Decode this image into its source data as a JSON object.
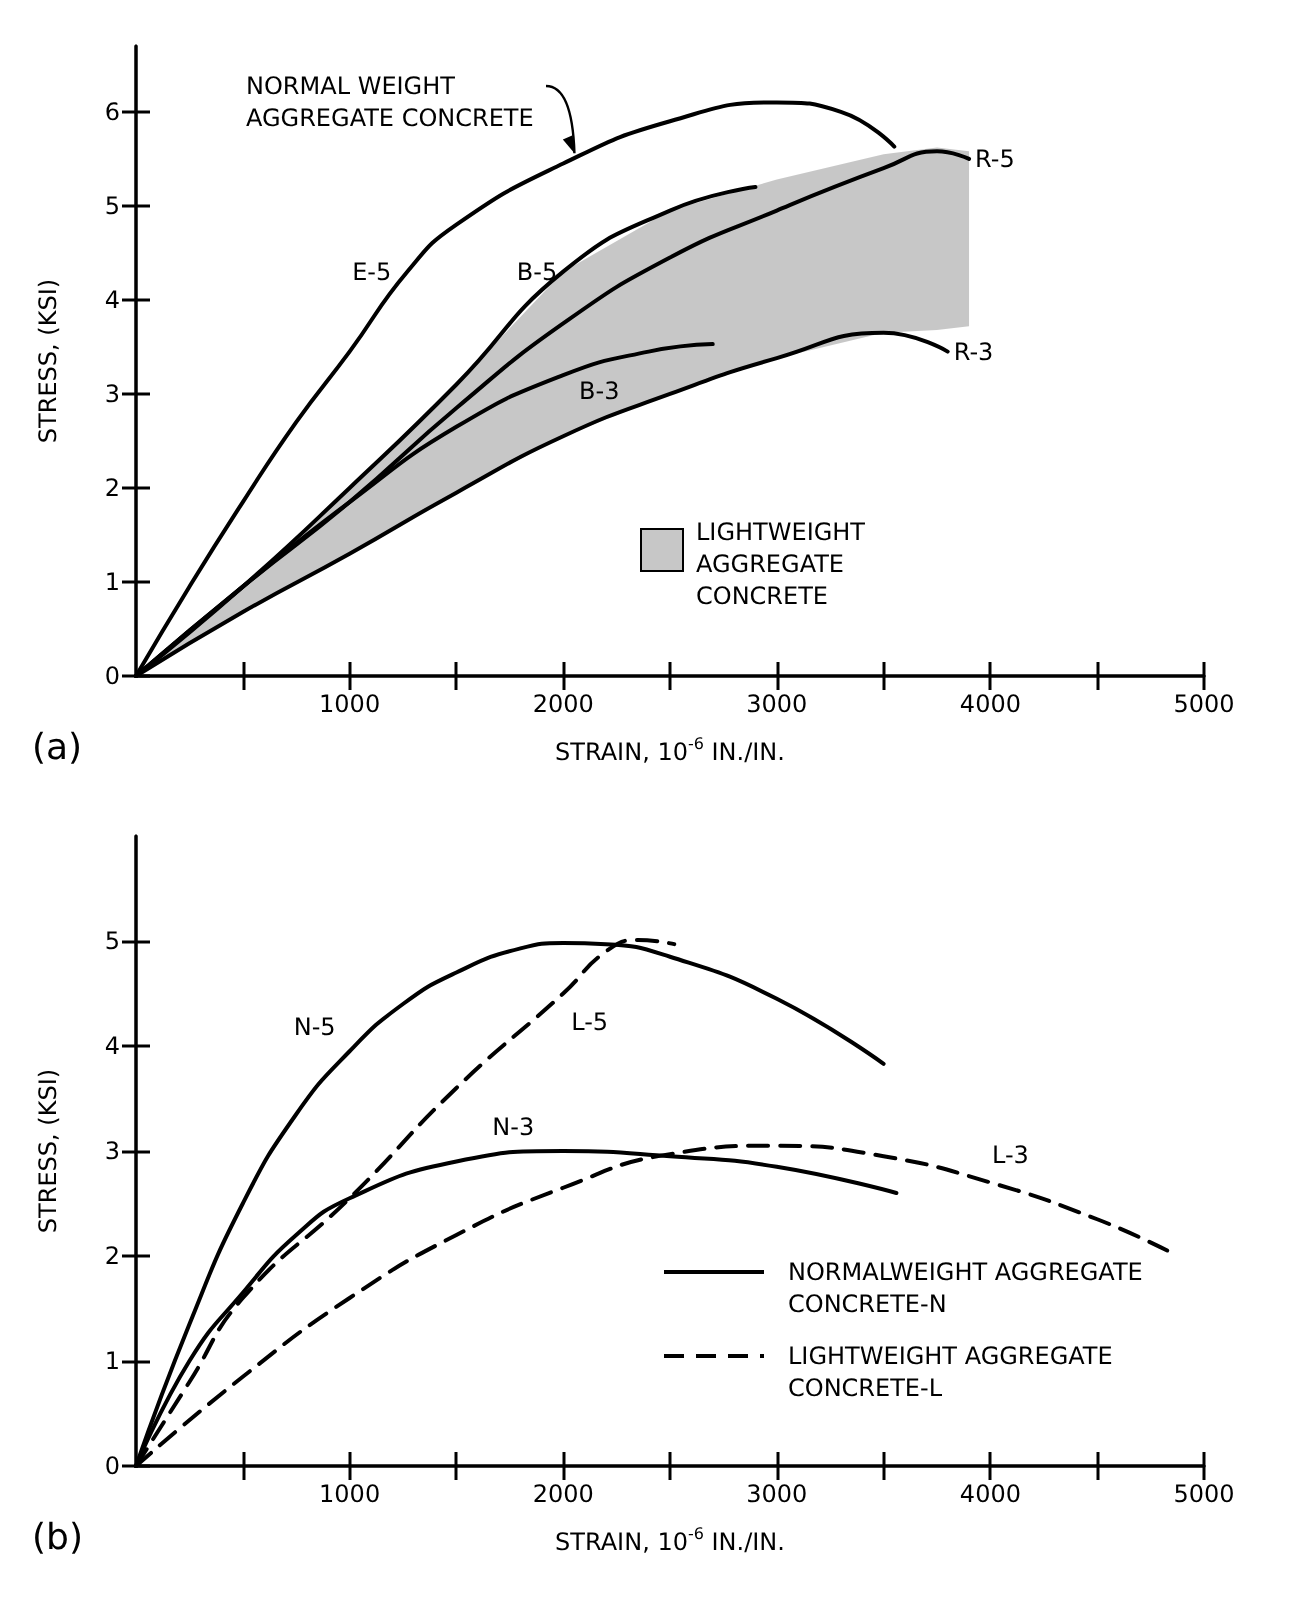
{
  "chart_data": [
    {
      "type": "line",
      "xlabel": "STRAIN, 10$^{-6}$ IN./IN.",
      "ylabel": "STRESS, (KSI)",
      "xlim": [
        0,
        5000
      ],
      "ylim": [
        0,
        6.7
      ],
      "xticks": [
        {
          "value": 500,
          "label": null
        },
        1000,
        {
          "value": 1500,
          "label": null
        },
        2000,
        {
          "value": 2500,
          "label": null
        },
        3000,
        {
          "value": 3500,
          "label": null
        },
        4000,
        {
          "value": 4500,
          "label": null
        },
        5000
      ],
      "yticks": [
        0,
        1,
        2,
        3,
        4,
        5,
        6
      ],
      "line_style": "solid",
      "marker": "none",
      "annotations": [
        "(a)",
        {
          "text": "NORMAL WEIGHT AGGREGATE CONCRETE",
          "x": 2060,
          "y": 5.52
        },
        "LIGHTWEIGHT AGGREGATE CONCRETE"
      ],
      "series": [
        {
          "name": "E-5",
          "color": "#000000",
          "x": [
            0,
            250,
            500,
            750,
            1000,
            1270,
            1500,
            2000,
            2500,
            3000,
            3300,
            3550
          ],
          "values": [
            0,
            0.95,
            1.85,
            2.7,
            3.45,
            4.3,
            4.8,
            5.45,
            5.9,
            6.1,
            6.0,
            5.63
          ]
        },
        {
          "name": "B-5",
          "color": "#000000",
          "x": [
            0,
            500,
            1000,
            1500,
            2000,
            2500,
            2900
          ],
          "values": [
            0,
            0.95,
            2.0,
            3.1,
            4.3,
            4.95,
            5.2
          ]
        },
        {
          "name": "R-5",
          "color": "#000000",
          "x": [
            0,
            500,
            1000,
            1500,
            2000,
            2500,
            3000,
            3500,
            3750,
            3900
          ],
          "values": [
            0,
            0.95,
            1.85,
            2.85,
            3.75,
            4.45,
            4.95,
            5.4,
            5.58,
            5.5
          ],
          "upper": [
            0,
            0.95,
            2.0,
            3.1,
            4.3,
            4.95,
            5.28,
            5.55,
            5.62,
            5.58
          ],
          "lower": [
            0,
            0.68,
            1.3,
            1.95,
            2.55,
            3.0,
            3.38,
            3.65,
            3.68,
            3.72
          ]
        },
        {
          "name": "B-3",
          "color": "#000000",
          "x": [
            0,
            500,
            1000,
            1500,
            2000,
            2400,
            2700
          ],
          "values": [
            0,
            0.95,
            1.85,
            2.65,
            3.2,
            3.45,
            3.53
          ]
        },
        {
          "name": "R-3",
          "color": "#000000",
          "x": [
            0,
            500,
            1000,
            1500,
            2000,
            2500,
            3000,
            3500,
            3800
          ],
          "values": [
            0,
            0.68,
            1.3,
            1.95,
            2.55,
            3.0,
            3.38,
            3.65,
            3.45
          ]
        }
      ]
    },
    {
      "type": "line",
      "xlabel": "STRAIN, 10$^{-6}$ IN./IN.",
      "ylabel": "STRESS, (KSI)",
      "xlim": [
        0,
        5000
      ],
      "ylim": [
        0,
        6
      ],
      "xticks": [
        {
          "value": 500,
          "label": null
        },
        1000,
        {
          "value": 1500,
          "label": null
        },
        2000,
        {
          "value": 2500,
          "label": null
        },
        3000,
        {
          "value": 3500,
          "label": null
        },
        4000,
        {
          "value": 4500,
          "label": null
        },
        5000
      ],
      "yticks": [
        0,
        1,
        2,
        3,
        4,
        5
      ],
      "marker": "none",
      "annotations": [
        "(b)",
        "NORMALWEIGHT AGGREGATE CONCRETE-N",
        "LIGHTWEIGHT AGGREGATE CONCRETE-L"
      ],
      "series": [
        {
          "name": "N-5",
          "color": "#000000",
          "line_style": "solid",
          "x": [
            0,
            250,
            500,
            750,
            1000,
            1250,
            1500,
            1800,
            2000,
            2200,
            2500,
            3000,
            3500
          ],
          "values": [
            0,
            1.35,
            2.5,
            3.35,
            3.95,
            4.4,
            4.7,
            4.93,
            4.98,
            4.97,
            4.85,
            4.45,
            3.83
          ]
        },
        {
          "name": "L-5",
          "color": "#000000",
          "line_style": "dashed",
          "x": [
            0,
            250,
            500,
            1000,
            1500,
            2000,
            2200,
            2350,
            2520
          ],
          "values": [
            0,
            0.8,
            1.6,
            2.55,
            3.6,
            4.5,
            4.9,
            5.01,
            4.97
          ]
        },
        {
          "name": "N-3",
          "color": "#000000",
          "line_style": "solid",
          "x": [
            0,
            250,
            500,
            750,
            1000,
            1500,
            2000,
            2500,
            3000,
            3560
          ],
          "values": [
            0,
            1.0,
            1.65,
            2.2,
            2.55,
            2.9,
            3.0,
            2.95,
            2.85,
            2.6
          ]
        },
        {
          "name": "L-3",
          "color": "#000000",
          "line_style": "dashed",
          "x": [
            0,
            500,
            1000,
            1500,
            2000,
            2500,
            3000,
            3500,
            4000,
            4500,
            4830
          ],
          "values": [
            0,
            0.85,
            1.6,
            2.2,
            2.65,
            2.97,
            3.05,
            2.95,
            2.7,
            2.35,
            2.05
          ]
        }
      ]
    }
  ]
}
